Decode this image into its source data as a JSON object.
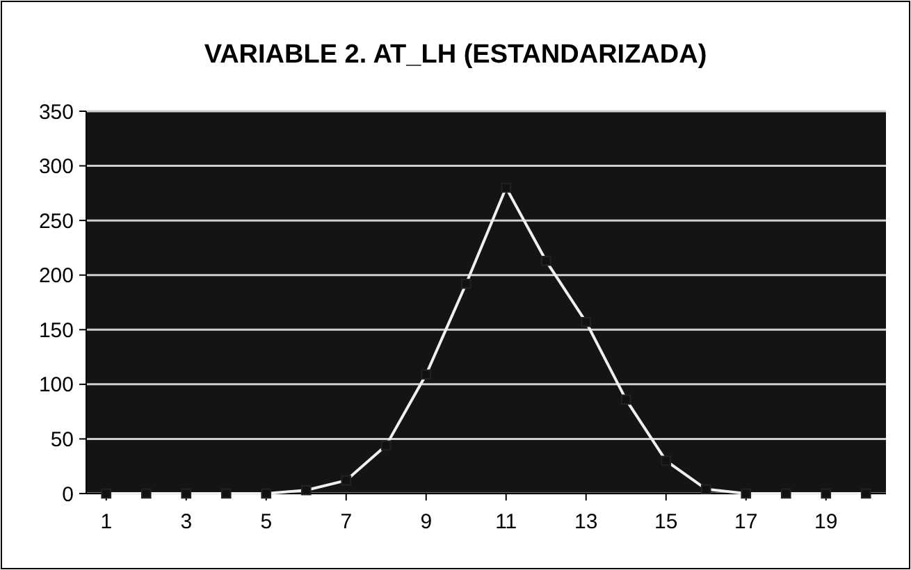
{
  "chart_data": {
    "type": "line",
    "title": "VARIABLE 2. AT_LH (ESTANDARIZADA)",
    "x": [
      1,
      2,
      3,
      4,
      5,
      6,
      7,
      8,
      9,
      10,
      11,
      12,
      13,
      14,
      15,
      16,
      17,
      18,
      19,
      20
    ],
    "series": [
      {
        "color": "#f0f0f0",
        "values": [
          0,
          0,
          0,
          0,
          0,
          3,
          12,
          44,
          109,
          192,
          280,
          213,
          157,
          86,
          30,
          4,
          0,
          0,
          0,
          0
        ]
      }
    ],
    "xlim": [
      0.5,
      20.5
    ],
    "xticks": [
      1,
      3,
      5,
      7,
      9,
      11,
      13,
      15,
      17,
      19
    ],
    "ylim": [
      0,
      350
    ],
    "yticks": [
      0,
      50,
      100,
      150,
      200,
      250,
      300,
      350
    ],
    "grid": "y",
    "marker": "square",
    "line_style": "solid"
  }
}
